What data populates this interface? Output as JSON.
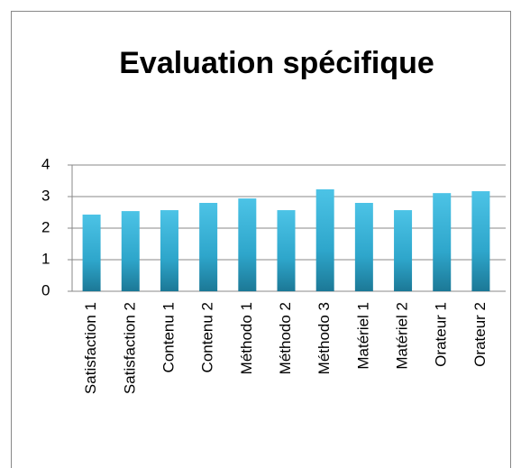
{
  "chart_data": {
    "type": "bar",
    "title": "Evaluation spécifique",
    "categories": [
      "Satisfaction 1",
      "Satisfaction 2",
      "Contenu 1",
      "Contenu 2",
      "Méthodo 1",
      "Méthodo 2",
      "Méthodo 3",
      "Matériel 1",
      "Matériel 2",
      "Orateur 1",
      "Orateur 2"
    ],
    "values": [
      2.43,
      2.54,
      2.57,
      2.8,
      2.94,
      2.57,
      3.23,
      2.8,
      2.57,
      3.11,
      3.17
    ],
    "color": "#2fa8cc",
    "ylim": [
      0,
      4
    ],
    "yticks": [
      0,
      1,
      2,
      3,
      4
    ],
    "grid": true
  }
}
